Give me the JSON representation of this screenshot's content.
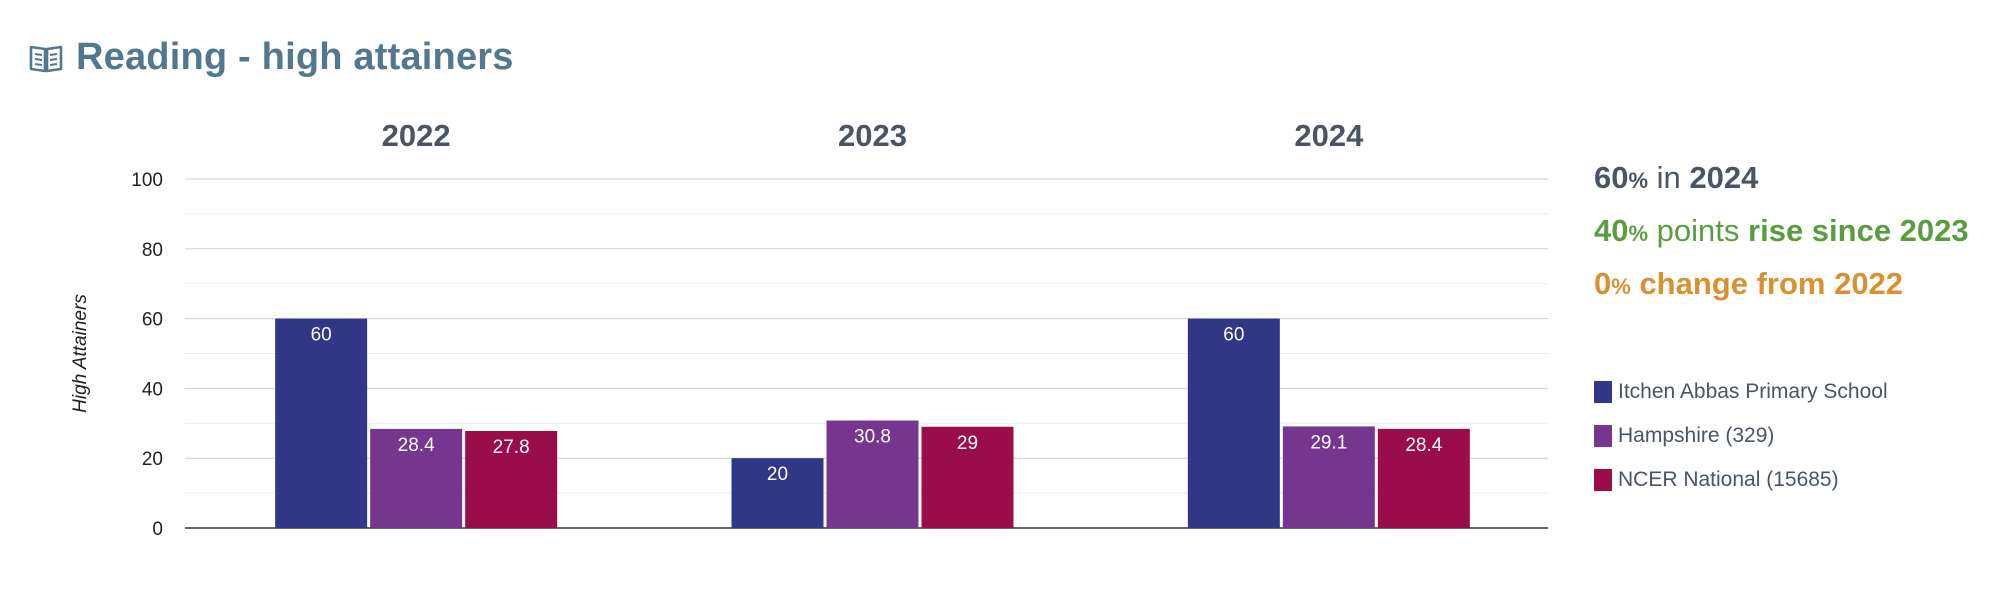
{
  "title": "Reading - high attainers",
  "colors": {
    "title": "#52788f",
    "school": "#2f3786",
    "hampshire": "#76368f",
    "national": "#9b0c4a",
    "neutral": "#4a5563",
    "rise": "#5a9d40",
    "change": "#d89130"
  },
  "summary": {
    "line1": {
      "value": "60",
      "pct": "%",
      "middle": "in",
      "year": "2024"
    },
    "line2": {
      "value": "40",
      "pct": "%",
      "middle": "points",
      "tail": "rise since 2023"
    },
    "line3": {
      "value": "0",
      "pct": "%",
      "tail": "change from 2022"
    }
  },
  "chart_data": {
    "type": "bar",
    "categories": [
      "2022",
      "2023",
      "2024"
    ],
    "ylabel": "High Attainers",
    "ylim": [
      0,
      100
    ],
    "yticks": [
      "0",
      "20",
      "40",
      "60",
      "80",
      "100"
    ],
    "series": [
      {
        "name": "Itchen Abbas Primary School",
        "values": [
          60,
          20,
          60
        ],
        "labels": [
          "60",
          "20",
          "60"
        ],
        "color": "#2f3786"
      },
      {
        "name": "Hampshire (329)",
        "values": [
          28.4,
          30.8,
          29.1
        ],
        "labels": [
          "28.4",
          "30.8",
          "29.1"
        ],
        "color": "#76368f"
      },
      {
        "name": "NCER National (15685)",
        "values": [
          27.8,
          29,
          28.4
        ],
        "labels": [
          "27.8",
          "29",
          "28.4"
        ],
        "color": "#9b0c4a"
      }
    ],
    "grid": true,
    "legend_position": "right"
  }
}
